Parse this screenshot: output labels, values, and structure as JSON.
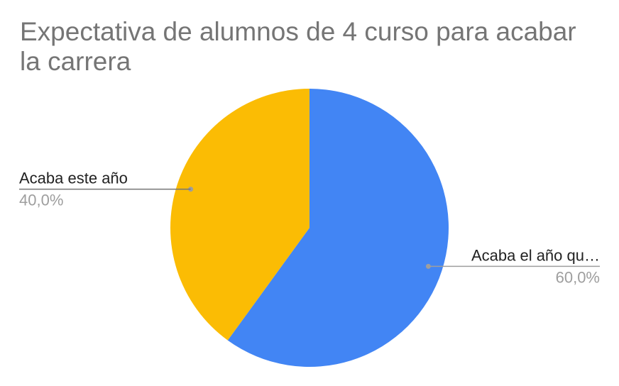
{
  "chart_data": {
    "type": "pie",
    "title": "Expectativa de alumnos de 4 curso para acabar la carrera",
    "slices": [
      {
        "label": "Acaba el año qu…",
        "value": 60.0,
        "percent_label": "60,0%",
        "color": "#4285f4"
      },
      {
        "label": "Acaba este año",
        "value": 40.0,
        "percent_label": "40,0%",
        "color": "#fbbc04"
      }
    ],
    "legend": "none",
    "start_angle_deg": 0,
    "direction": "clockwise"
  }
}
